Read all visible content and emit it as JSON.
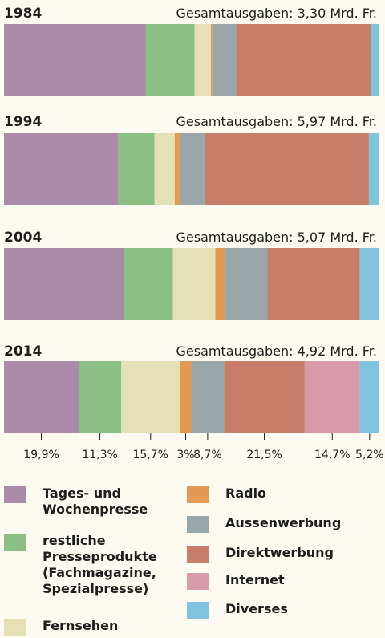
{
  "chart_data": {
    "type": "bar",
    "orientation": "horizontal-stacked-100",
    "series": [
      {
        "name": "Tages- und\nWochenpresse",
        "color": "#a98aa7"
      },
      {
        "name": "restliche\nPresseprodukte\n(Fachmagazine,\nSpezialpresse)",
        "color": "#8cbf84"
      },
      {
        "name": "Fernsehen",
        "color": "#e6e0b6"
      },
      {
        "name": "Radio",
        "color": "#e39b53"
      },
      {
        "name": "Aussenwerbung",
        "color": "#9aa7aa"
      },
      {
        "name": "Direktwerbung",
        "color": "#c77d68"
      },
      {
        "name": "Internet",
        "color": "#d69aab"
      },
      {
        "name": "Diverses",
        "color": "#7fc3de"
      }
    ],
    "bars": [
      {
        "year": "1984",
        "total_label": "Gesamtausgaben: 3,30 Mrd. Fr.",
        "shares": [
          37.8,
          13.0,
          4.3,
          0.4,
          6.3,
          36.0,
          0,
          2.2
        ]
      },
      {
        "year": "1994",
        "total_label": "Gesamtausgaben: 5,97 Mrd. Fr.",
        "shares": [
          30.5,
          9.6,
          5.4,
          1.5,
          6.5,
          43.7,
          0,
          2.8
        ]
      },
      {
        "year": "2004",
        "total_label": "Gesamtausgaben: 5,07 Mrd. Fr.",
        "shares": [
          32.0,
          13.0,
          11.3,
          2.6,
          11.3,
          24.6,
          0,
          5.2
        ]
      },
      {
        "year": "2014",
        "total_label": "Gesamtausgaben: 4,92 Mrd. Fr.",
        "shares": [
          19.9,
          11.3,
          15.7,
          3.0,
          8.7,
          21.5,
          14.7,
          5.2
        ]
      }
    ],
    "bottom_labels": [
      "19,9%",
      "11,3%",
      "15,7%",
      "3%",
      "8,7%",
      "21,5%",
      "14,7%",
      "5,2%"
    ],
    "legend_placement": "bottom",
    "grid": false
  }
}
